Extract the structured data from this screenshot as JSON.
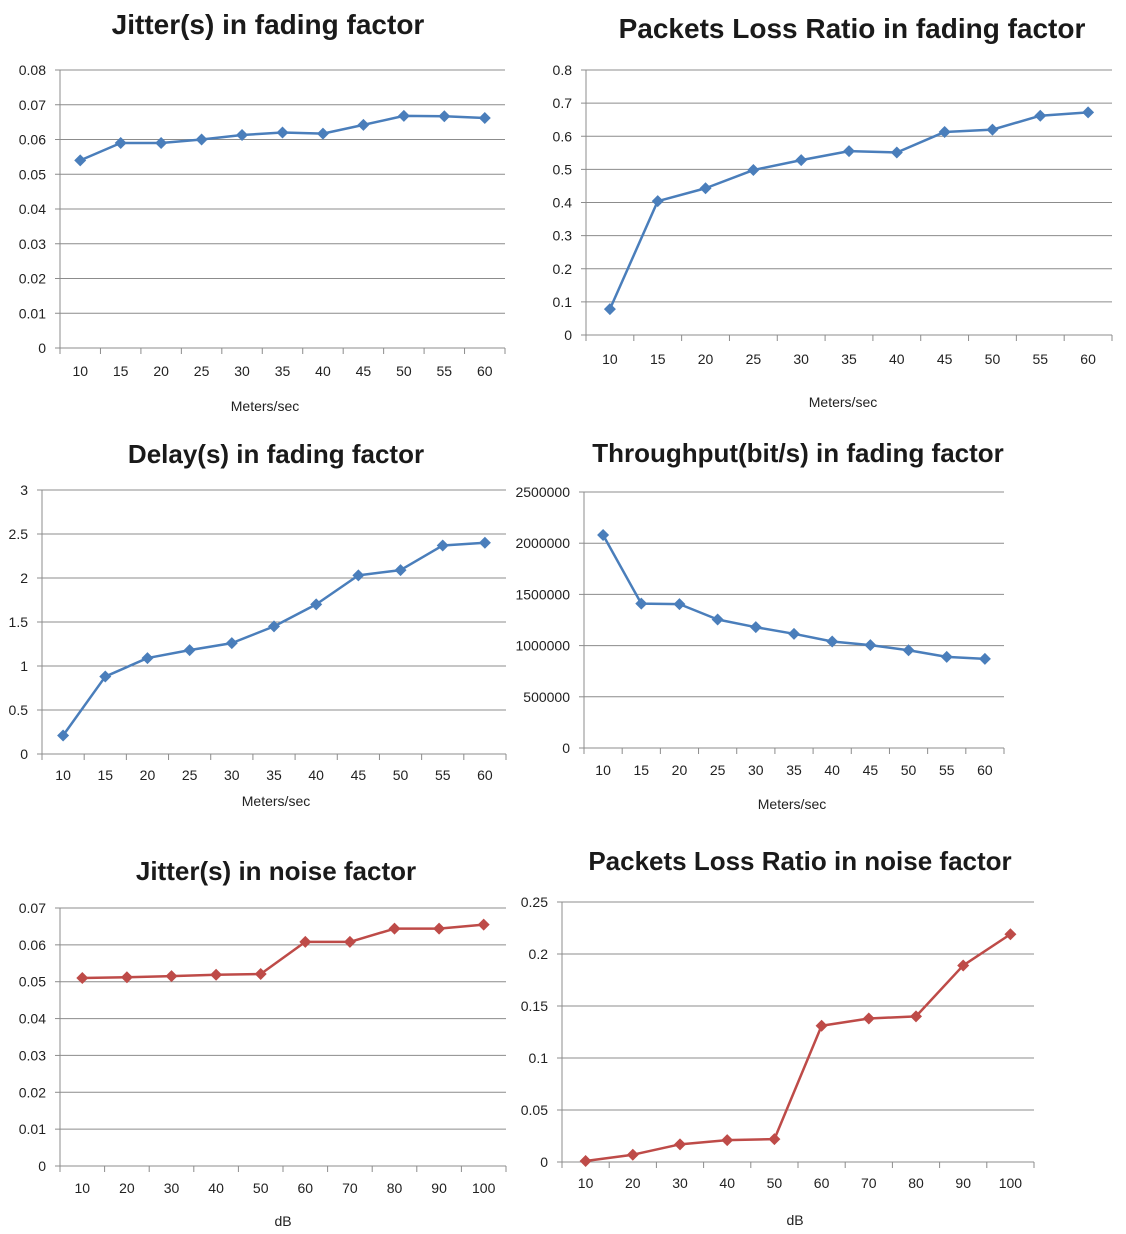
{
  "chart_data": [
    {
      "type": "line",
      "title": "Jitter(s) in fading factor",
      "xlabel": "Meters/sec",
      "ylabel": "",
      "categories": [
        "10",
        "15",
        "20",
        "25",
        "30",
        "35",
        "40",
        "45",
        "50",
        "55",
        "60"
      ],
      "yticks": [
        "0",
        "0.01",
        "0.02",
        "0.03",
        "0.04",
        "0.05",
        "0.06",
        "0.07",
        "0.08"
      ],
      "ylim": [
        0,
        0.08
      ],
      "series": [
        {
          "values": [
            0.054,
            0.059,
            0.059,
            0.06,
            0.0613,
            0.062,
            0.0617,
            0.0642,
            0.0668,
            0.0667,
            0.0662
          ],
          "color": "#4a7ebb"
        }
      ],
      "grid": true
    },
    {
      "type": "line",
      "title": "Packets Loss Ratio in fading factor",
      "xlabel": "Meters/sec",
      "ylabel": "",
      "categories": [
        "10",
        "15",
        "20",
        "25",
        "30",
        "35",
        "40",
        "45",
        "50",
        "55",
        "60"
      ],
      "yticks": [
        "0",
        "0.1",
        "0.2",
        "0.3",
        "0.4",
        "0.5",
        "0.6",
        "0.7",
        "0.8"
      ],
      "ylim": [
        0,
        0.8
      ],
      "series": [
        {
          "values": [
            0.078,
            0.404,
            0.443,
            0.498,
            0.528,
            0.555,
            0.551,
            0.613,
            0.62,
            0.662,
            0.672
          ],
          "color": "#4a7ebb"
        }
      ],
      "grid": true
    },
    {
      "type": "line",
      "title": "Delay(s) in fading factor",
      "xlabel": "Meters/sec",
      "ylabel": "",
      "categories": [
        "10",
        "15",
        "20",
        "25",
        "30",
        "35",
        "40",
        "45",
        "50",
        "55",
        "60"
      ],
      "yticks": [
        "0",
        "0.5",
        "1",
        "1.5",
        "2",
        "2.5",
        "3"
      ],
      "ylim": [
        0,
        3
      ],
      "series": [
        {
          "values": [
            0.21,
            0.88,
            1.09,
            1.18,
            1.26,
            1.45,
            1.7,
            2.03,
            2.09,
            2.37,
            2.4
          ],
          "color": "#4a7ebb"
        }
      ],
      "grid": true
    },
    {
      "type": "line",
      "title": "Throughput(bit/s) in fading factor",
      "xlabel": "Meters/sec",
      "ylabel": "",
      "categories": [
        "10",
        "15",
        "20",
        "25",
        "30",
        "35",
        "40",
        "45",
        "50",
        "55",
        "60"
      ],
      "yticks": [
        "0",
        "500000",
        "1000000",
        "1500000",
        "2000000",
        "2500000"
      ],
      "ylim": [
        0,
        2500000
      ],
      "series": [
        {
          "values": [
            2080000,
            1410000,
            1405000,
            1255000,
            1180000,
            1115000,
            1040000,
            1005000,
            955000,
            890000,
            870000
          ],
          "color": "#4a7ebb"
        }
      ],
      "grid": true
    },
    {
      "type": "line",
      "title": "Jitter(s) in noise factor",
      "xlabel": "dB",
      "ylabel": "",
      "categories": [
        "10",
        "20",
        "30",
        "40",
        "50",
        "60",
        "70",
        "80",
        "90",
        "100"
      ],
      "yticks": [
        "0",
        "0.01",
        "0.02",
        "0.03",
        "0.04",
        "0.05",
        "0.06",
        "0.07"
      ],
      "ylim": [
        0,
        0.07
      ],
      "series": [
        {
          "values": [
            0.051,
            0.0512,
            0.0515,
            0.0519,
            0.0521,
            0.0608,
            0.0608,
            0.0644,
            0.0644,
            0.0655
          ],
          "color": "#be4b48"
        }
      ],
      "grid": true
    },
    {
      "type": "line",
      "title": "Packets Loss Ratio in noise factor",
      "xlabel": "dB",
      "ylabel": "",
      "categories": [
        "10",
        "20",
        "30",
        "40",
        "50",
        "60",
        "70",
        "80",
        "90",
        "100"
      ],
      "yticks": [
        "0",
        "0.05",
        "0.1",
        "0.15",
        "0.2",
        "0.25"
      ],
      "ylim": [
        0,
        0.25
      ],
      "series": [
        {
          "values": [
            0.001,
            0.007,
            0.017,
            0.021,
            0.022,
            0.131,
            0.138,
            0.14,
            0.189,
            0.219
          ],
          "color": "#be4b48"
        }
      ],
      "grid": true
    }
  ]
}
